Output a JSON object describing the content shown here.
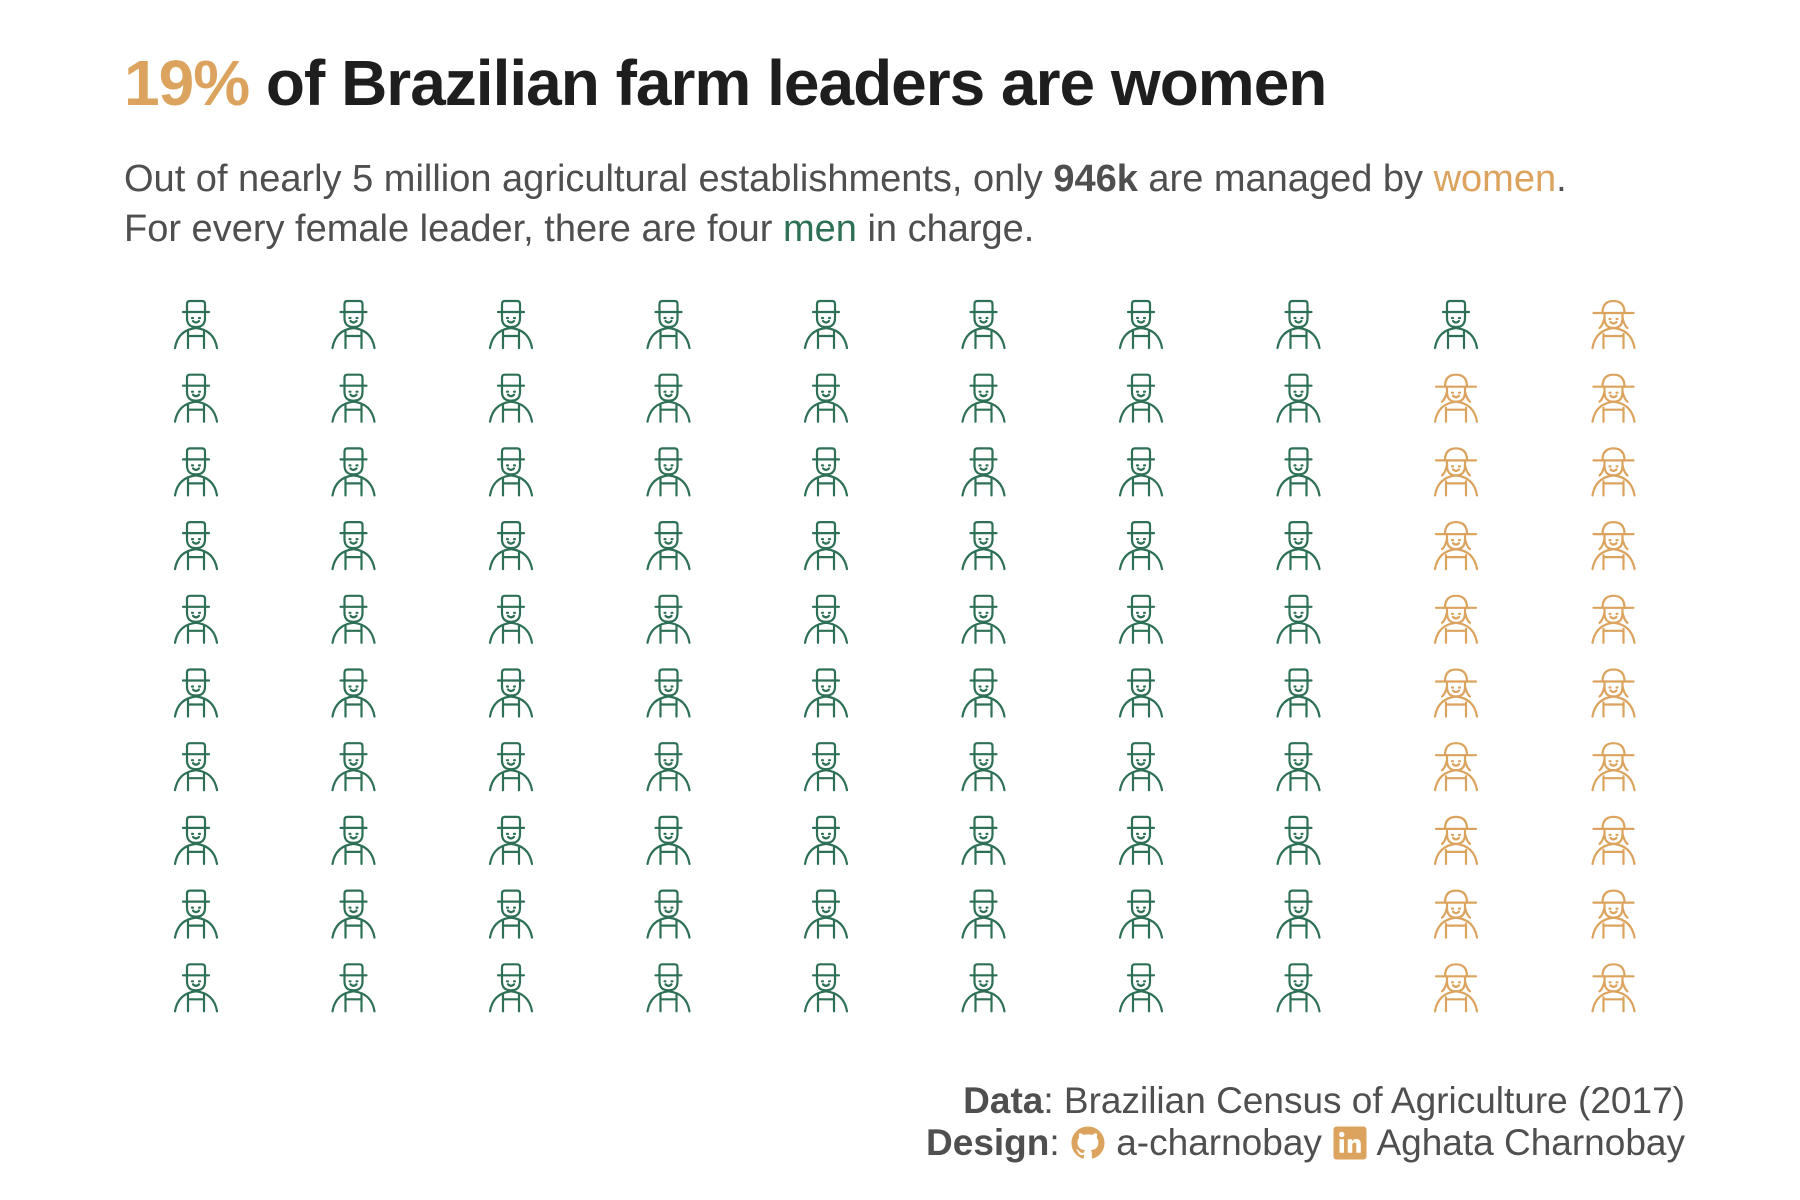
{
  "title": {
    "highlight": "19%",
    "rest": " of Brazilian farm leaders are women"
  },
  "subtitle": {
    "line1_a": "Out of nearly 5 million agricultural establishments, only ",
    "line1_bold": "946k",
    "line1_b": " are managed by ",
    "line1_women": "women",
    "line1_end": ".",
    "line2_a": "For every female leader, there are four ",
    "line2_men": "men",
    "line2_b": " in charge."
  },
  "colors": {
    "men": "#2e7055",
    "women": "#dba35e",
    "text": "#4f4f4f",
    "title": "#1e1e1e"
  },
  "chart_data": {
    "type": "waffle",
    "rows": 10,
    "columns": 10,
    "fill_order": "column-major",
    "series": [
      {
        "name": "men",
        "value": 81,
        "icon": "male-farmer-icon"
      },
      {
        "name": "women",
        "value": 19,
        "icon": "female-farmer-icon"
      }
    ]
  },
  "footer": {
    "data_label": "Data",
    "data_value": ": Brazilian Census of Agriculture (2017)",
    "design_label": "Design",
    "design_colon": ": ",
    "github": "a-charnobay",
    "linkedin": "Aghata Charnobay"
  }
}
